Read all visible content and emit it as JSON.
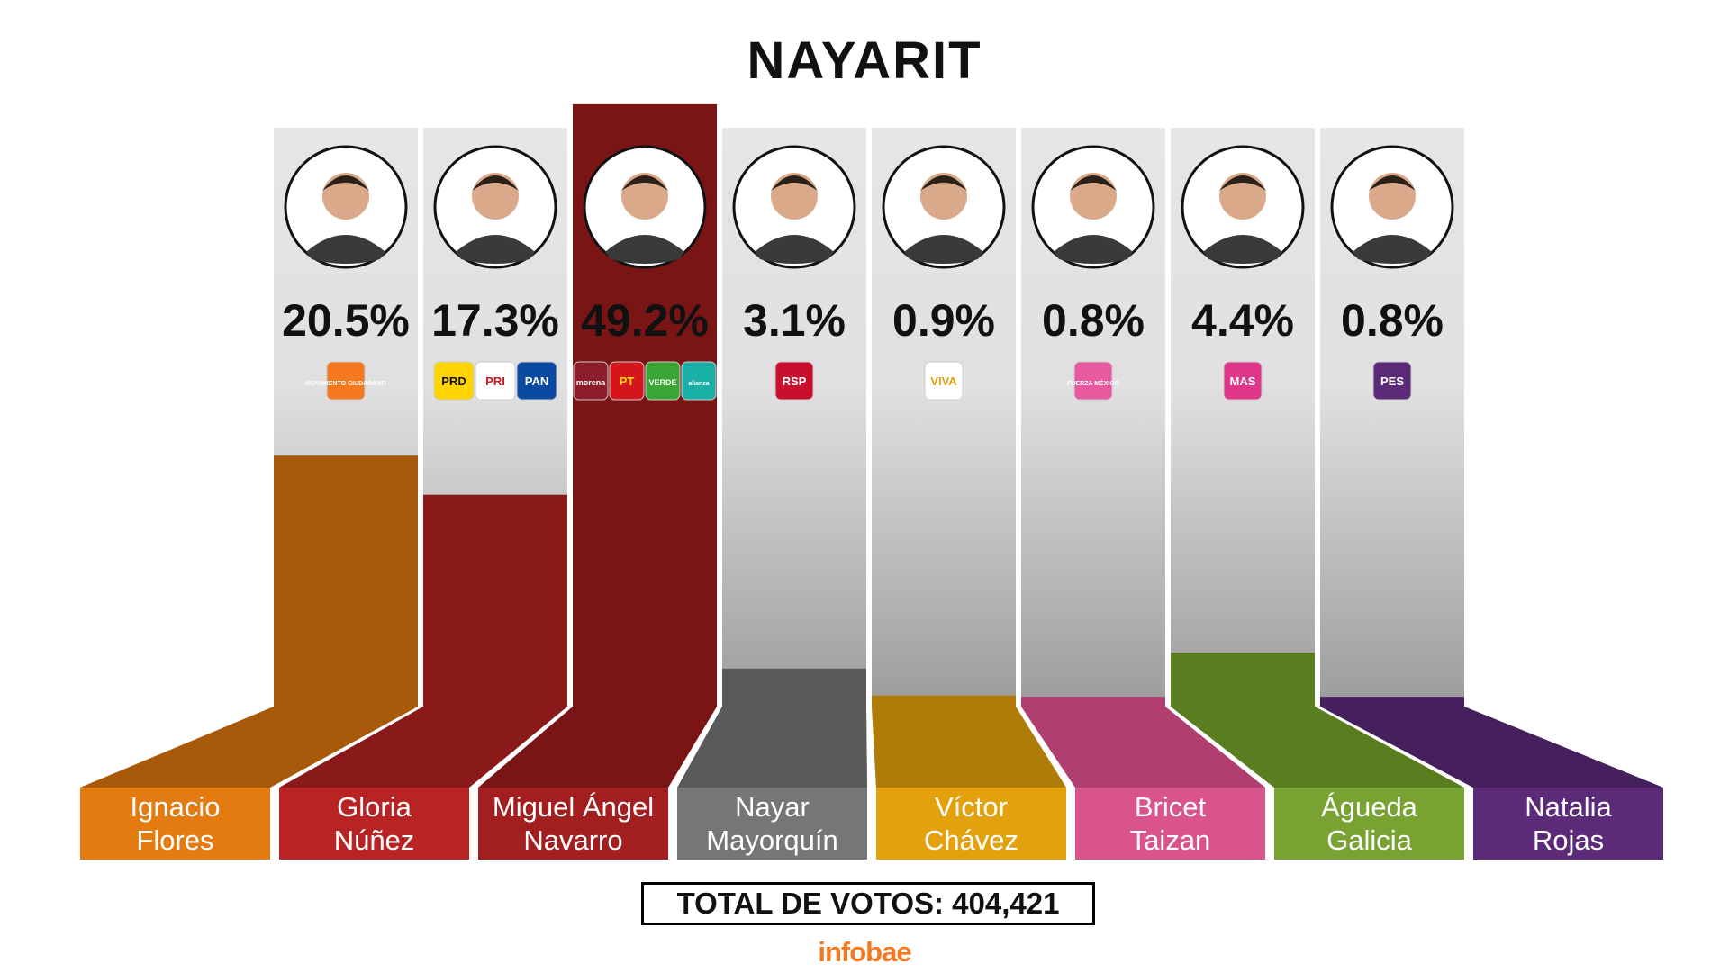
{
  "title": "NAYARIT",
  "total_label": "TOTAL DE VOTOS: 404,421",
  "brand": "infobae",
  "colors": {
    "brand": "#f47920",
    "column_bg": "#d9d9d9"
  },
  "chart_data": {
    "type": "bar",
    "title": "NAYARIT",
    "unit": "%",
    "categories": [
      "Ignacio Flores",
      "Gloria Núñez",
      "Miguel Ángel Navarro",
      "Nayar Mayorquín",
      "Víctor Chávez",
      "Bricet Taizan",
      "Águeda Galicia",
      "Natalia Rojas"
    ],
    "values": [
      20.5,
      17.3,
      49.2,
      3.1,
      0.9,
      0.8,
      4.4,
      0.8
    ],
    "candidates": [
      {
        "name_line1": "Ignacio",
        "name_line2": "Flores",
        "percent": 20.5,
        "percent_label": "20.5%",
        "color": "#e47b10",
        "dark": "#a85a0a",
        "parties": [
          {
            "label": "MOVIMIENTO CIUDADANO",
            "bg": "#f47920",
            "fg": "#ffffff"
          }
        ]
      },
      {
        "name_line1": "Gloria",
        "name_line2": "Núñez",
        "percent": 17.3,
        "percent_label": "17.3%",
        "color": "#b82424",
        "dark": "#8a1a1a",
        "parties": [
          {
            "label": "PRD",
            "bg": "#ffd400",
            "fg": "#111111"
          },
          {
            "label": "PRI",
            "bg": "#ffffff",
            "fg": "#d4161c"
          },
          {
            "label": "PAN",
            "bg": "#0a4aa0",
            "fg": "#ffffff"
          }
        ]
      },
      {
        "name_line1": "Miguel Ángel",
        "name_line2": "Navarro",
        "percent": 49.2,
        "percent_label": "49.2%",
        "color": "#a31f1f",
        "dark": "#7a1515",
        "parties": [
          {
            "label": "morena",
            "bg": "#8b1e2a",
            "fg": "#ffffff"
          },
          {
            "label": "PT",
            "bg": "#d4161c",
            "fg": "#ffdd00"
          },
          {
            "label": "VERDE",
            "bg": "#3aa535",
            "fg": "#ffffff"
          },
          {
            "label": "alianza",
            "bg": "#1ab0a8",
            "fg": "#ffffff"
          }
        ]
      },
      {
        "name_line1": "Nayar",
        "name_line2": "Mayorquín",
        "percent": 3.1,
        "percent_label": "3.1%",
        "color": "#767676",
        "dark": "#5a5a5a",
        "parties": [
          {
            "label": "RSP",
            "bg": "#c8102e",
            "fg": "#ffffff"
          }
        ]
      },
      {
        "name_line1": "Víctor",
        "name_line2": "Chávez",
        "percent": 0.9,
        "percent_label": "0.9%",
        "color": "#e2a10d",
        "dark": "#b07c08",
        "parties": [
          {
            "label": "VIVA",
            "bg": "#ffffff",
            "fg": "#e2a10d"
          }
        ]
      },
      {
        "name_line1": "Bricet",
        "name_line2": "Taizan",
        "percent": 0.8,
        "percent_label": "0.8%",
        "color": "#d9548d",
        "dark": "#b03e70",
        "parties": [
          {
            "label": "FUERZA MÉXICO",
            "bg": "#e75aa0",
            "fg": "#ffffff"
          }
        ]
      },
      {
        "name_line1": "Águeda",
        "name_line2": "Galicia",
        "percent": 4.4,
        "percent_label": "4.4%",
        "color": "#78a232",
        "dark": "#5a7d20",
        "parties": [
          {
            "label": "MAS",
            "bg": "#e0368a",
            "fg": "#ffffff"
          }
        ]
      },
      {
        "name_line1": "Natalia",
        "name_line2": "Rojas",
        "percent": 0.8,
        "percent_label": "0.8%",
        "color": "#5b2a79",
        "dark": "#45205d",
        "parties": [
          {
            "label": "PES",
            "bg": "#5b2a79",
            "fg": "#ffffff"
          }
        ]
      }
    ]
  }
}
